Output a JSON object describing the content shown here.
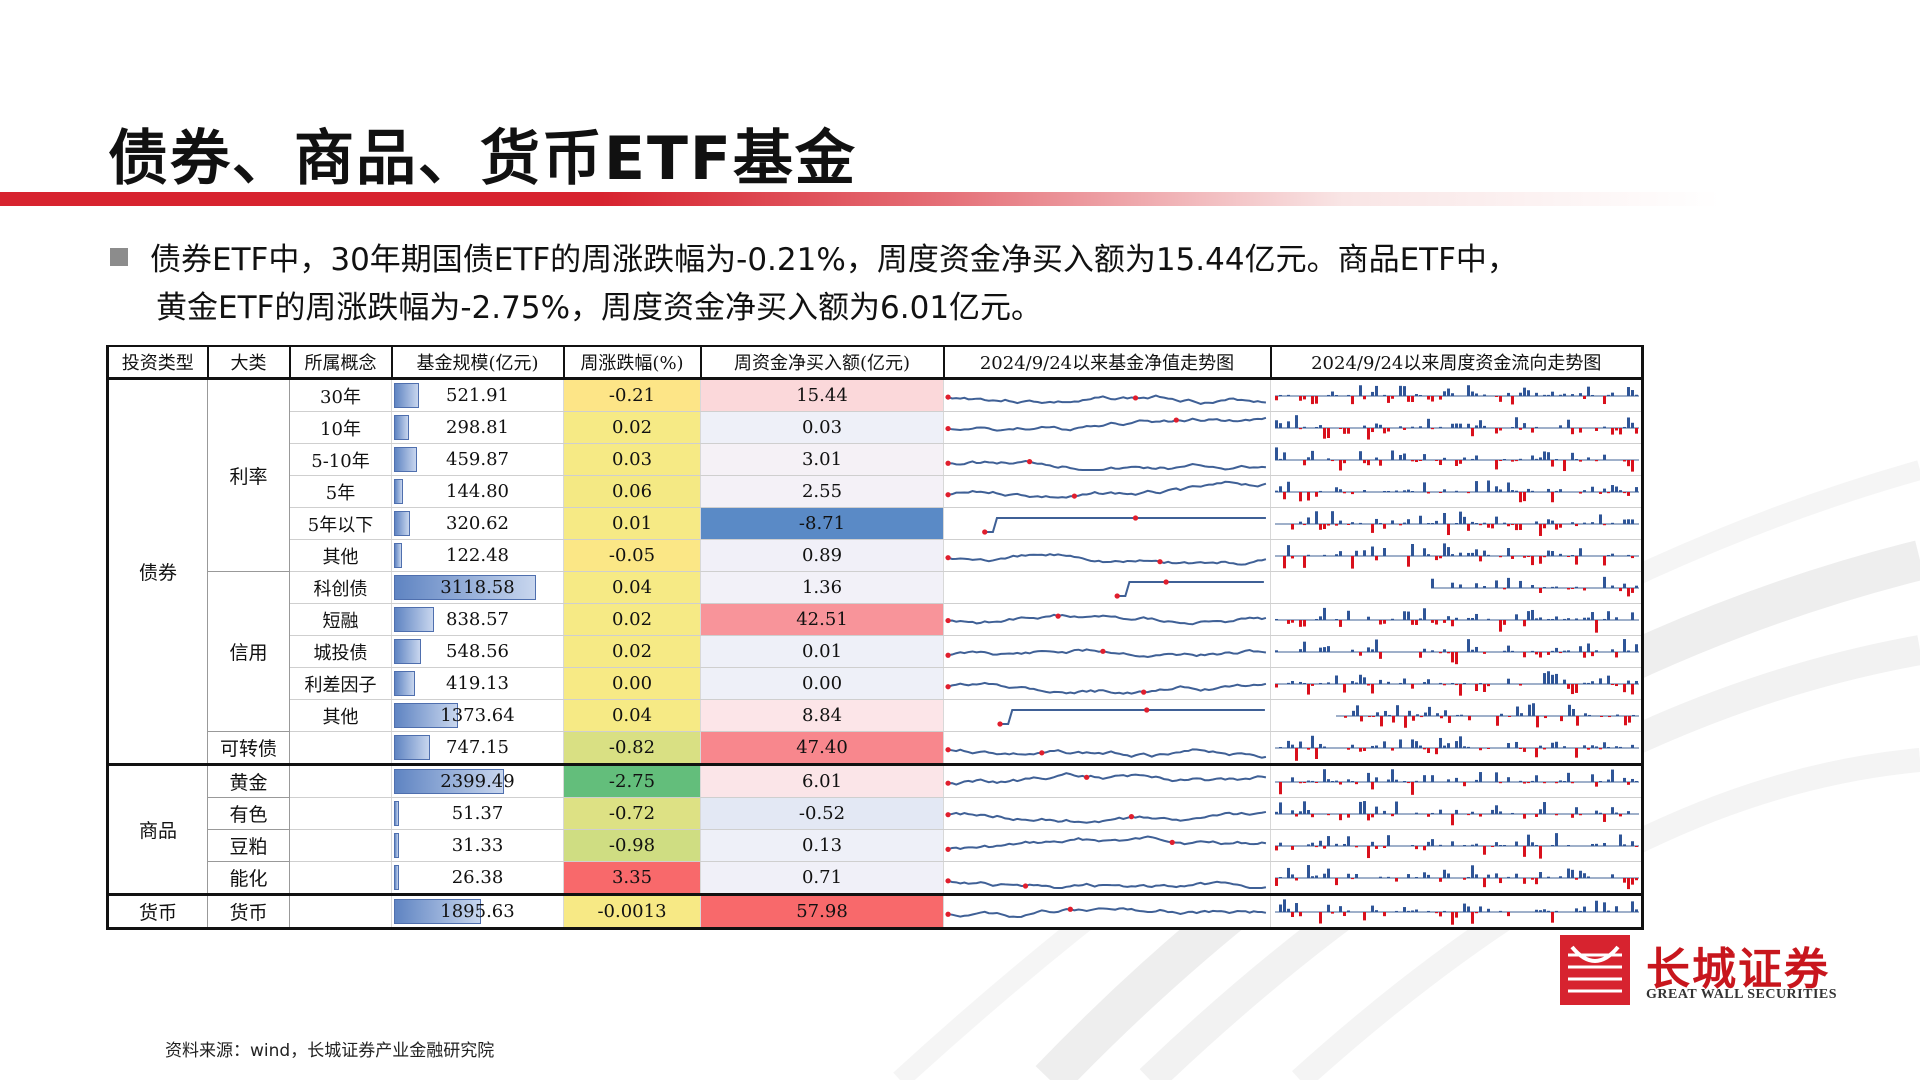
{
  "title": "债券、商品、货币ETF基金",
  "bullet": {
    "line1": "债券ETF中，30年期国债ETF的周涨跌幅为-0.21%，周度资金净买入额为15.44亿元。商品ETF中，",
    "line2": "黄金ETF的周涨跌幅为-2.75%，周度资金净买入额为6.01亿元。"
  },
  "table": {
    "headers": [
      "投资类型",
      "大类",
      "所属概念",
      "基金规模(亿元)",
      "周涨跌幅(%)",
      "周资金净买入额(亿元)",
      "2024/9/24以来基金净值走势图",
      "2024/9/24以来周度资金流向走势图"
    ],
    "types": {
      "bond": "债券",
      "commodity": "商品",
      "money": "货币"
    },
    "categories": {
      "rate": "利率",
      "credit": "信用",
      "convertible": "可转债",
      "gold": "黄金",
      "nonferrous": "有色",
      "soymeal": "豆粕",
      "energy": "能化",
      "money": "货币"
    },
    "rows": [
      {
        "concept": "30年",
        "scale": "521.91",
        "scale_value": 521.91,
        "change": "-0.21",
        "flow": "15.44"
      },
      {
        "concept": "10年",
        "scale": "298.81",
        "scale_value": 298.81,
        "change": "0.02",
        "flow": "0.03"
      },
      {
        "concept": "5-10年",
        "scale": "459.87",
        "scale_value": 459.87,
        "change": "0.03",
        "flow": "3.01"
      },
      {
        "concept": "5年",
        "scale": "144.80",
        "scale_value": 144.8,
        "change": "0.06",
        "flow": "2.55"
      },
      {
        "concept": "5年以下",
        "scale": "320.62",
        "scale_value": 320.62,
        "change": "0.01",
        "flow": "-8.71"
      },
      {
        "concept": "其他",
        "scale": "122.48",
        "scale_value": 122.48,
        "change": "-0.05",
        "flow": "0.89"
      },
      {
        "concept": "科创债",
        "scale": "3118.58",
        "scale_value": 3118.58,
        "change": "0.04",
        "flow": "1.36"
      },
      {
        "concept": "短融",
        "scale": "838.57",
        "scale_value": 838.57,
        "change": "0.02",
        "flow": "42.51"
      },
      {
        "concept": "城投债",
        "scale": "548.56",
        "scale_value": 548.56,
        "change": "0.02",
        "flow": "0.01"
      },
      {
        "concept": "利差因子",
        "scale": "419.13",
        "scale_value": 419.13,
        "change": "0.00",
        "flow": "0.00"
      },
      {
        "concept": "其他",
        "scale": "1373.64",
        "scale_value": 1373.64,
        "change": "0.04",
        "flow": "8.84"
      },
      {
        "concept": "",
        "scale": "747.15",
        "scale_value": 747.15,
        "change": "-0.82",
        "flow": "47.40"
      },
      {
        "concept": "",
        "scale": "2399.49",
        "scale_value": 2399.49,
        "change": "-2.75",
        "flow": "6.01"
      },
      {
        "concept": "",
        "scale": "51.37",
        "scale_value": 51.37,
        "change": "-0.72",
        "flow": "-0.52"
      },
      {
        "concept": "",
        "scale": "31.33",
        "scale_value": 31.33,
        "change": "-0.98",
        "flow": "0.13"
      },
      {
        "concept": "",
        "scale": "26.38",
        "scale_value": 26.38,
        "change": "3.35",
        "flow": "0.71"
      },
      {
        "concept": "",
        "scale": "1895.63",
        "scale_value": 1895.63,
        "change": "-0.0013",
        "flow": "57.98"
      }
    ],
    "change_colors": [
      "#fde587",
      "#f6ea85",
      "#f6ea85",
      "#f4e984",
      "#f6ea85",
      "#fbe786",
      "#f6ea85",
      "#f6ea85",
      "#f6ea85",
      "#f7ea85",
      "#f6ea85",
      "#d9e083",
      "#63be7b",
      "#dde184",
      "#cfdd82",
      "#f8696b",
      "#f7e985"
    ],
    "flow_colors": [
      "#fbd8da",
      "#eef0f8",
      "#f5f1f6",
      "#f4f1f7",
      "#5a8ac6",
      "#f1f0f8",
      "#f2f1f8",
      "#f8949a",
      "#eef0f8",
      "#eef0f8",
      "#fce5e8",
      "#f8878d",
      "#fbe5e8",
      "#e3e8f4",
      "#eef0f8",
      "#f0f0f8",
      "#f8696b"
    ]
  },
  "source": "资料来源：wind，长城证券产业金融研究院",
  "logo": {
    "cn": "长城证券",
    "en": "GREAT WALL SECURITIES"
  }
}
